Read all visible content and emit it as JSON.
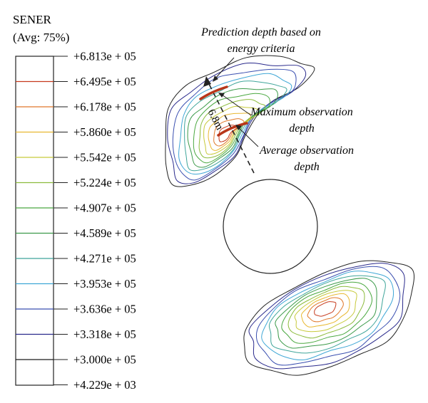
{
  "legend": {
    "title": "SENER",
    "subtitle": "(Avg: 75%)",
    "levels": [
      {
        "label": "+6.813e + 05",
        "color": "#2a2a2a"
      },
      {
        "label": "+6.495e + 05",
        "color": "#c63a1c"
      },
      {
        "label": "+6.178e + 05",
        "color": "#e0782a"
      },
      {
        "label": "+5.860e + 05",
        "color": "#e8b830"
      },
      {
        "label": "+5.542e + 05",
        "color": "#c7c93a"
      },
      {
        "label": "+5.224e + 05",
        "color": "#8cbb3c"
      },
      {
        "label": "+4.907e + 05",
        "color": "#4aa840"
      },
      {
        "label": "+4.589e + 05",
        "color": "#3c9a4a"
      },
      {
        "label": "+4.271e + 05",
        "color": "#3fa59a"
      },
      {
        "label": "+3.953e + 05",
        "color": "#3fa7d6"
      },
      {
        "label": "+3.636e + 05",
        "color": "#3a4fb0"
      },
      {
        "label": "+3.318e + 05",
        "color": "#2a2a8c"
      },
      {
        "label": "+3.000e + 05",
        "color": "#1a1a1a"
      },
      {
        "label": "+4.229e + 03",
        "color": "#1a1a1a"
      }
    ]
  },
  "annotations": {
    "prediction_line1": "Prediction depth based on",
    "prediction_line2": "energy criteria",
    "maximum_line1": "Maximum observation",
    "maximum_line2": "depth",
    "average_line1": "Average observation",
    "average_line2": "depth",
    "distance_label": "6.8m"
  },
  "colors": {
    "highlight": "#b8361a",
    "outline": "#222222"
  }
}
